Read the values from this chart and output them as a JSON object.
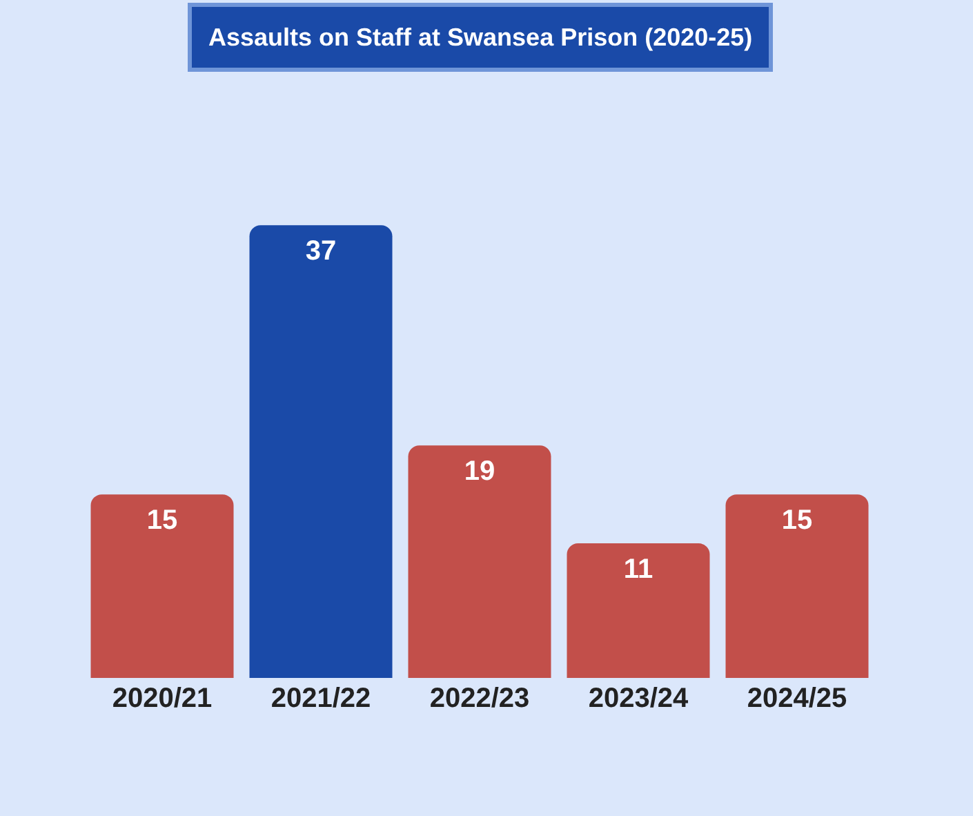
{
  "chart_data": {
    "type": "bar",
    "title": "Assaults on Staff at Swansea Prison (2020-25)",
    "categories": [
      "2020/21",
      "2021/22",
      "2022/23",
      "2023/24",
      "2024/25"
    ],
    "values": [
      15,
      37,
      19,
      11,
      15
    ],
    "colors": [
      "#c24f4a",
      "#1a4aa8",
      "#c24f4a",
      "#c24f4a",
      "#c24f4a"
    ],
    "data_labels": true,
    "grid": false,
    "legend": false
  }
}
